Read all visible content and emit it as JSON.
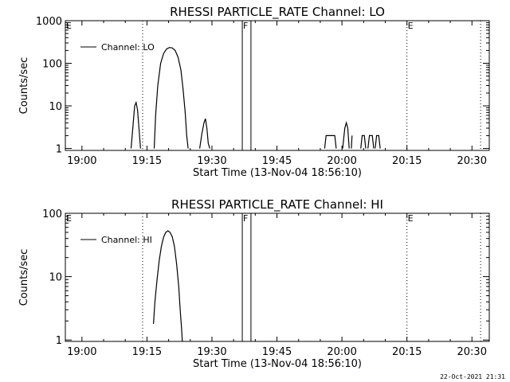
{
  "footer": {
    "timestamp": "22-Oct-2021 21:31"
  },
  "chart_data": [
    {
      "type": "line",
      "title": "RHESSI PARTICLE_RATE Channel: LO",
      "xlabel": "Start Time (13-Nov-04 18:56:10)",
      "ylabel": "Counts/sec",
      "y_scale": "log",
      "ylim": [
        0.9,
        1000
      ],
      "xlim": [
        "18:56:10",
        "20:34:00"
      ],
      "x_ticks": [
        "19:00",
        "19:15",
        "19:30",
        "19:45",
        "20:00",
        "20:15",
        "20:30"
      ],
      "y_ticks": [
        "1",
        "10",
        "100",
        "1000"
      ],
      "legend": {
        "placement": "top-left",
        "entries": [
          "Channel: LO"
        ]
      },
      "grid": false,
      "markers": [
        {
          "time": "19:14",
          "style": "dotted",
          "label": ""
        },
        {
          "time": "19:37",
          "style": "solid",
          "label": "F"
        },
        {
          "time": "19:39",
          "style": "solid",
          "label": ""
        },
        {
          "time": "20:15",
          "style": "dotted",
          "label": "E"
        },
        {
          "time": "20:32",
          "style": "dotted",
          "label": ""
        }
      ],
      "corner_labels": [
        "E"
      ],
      "series": [
        {
          "name": "Channel: LO",
          "segments": [
            [
              [
                "19:11:20",
                1
              ],
              [
                "19:11:50",
                4
              ],
              [
                "19:12:10",
                10
              ],
              [
                "19:12:30",
                12
              ],
              [
                "19:12:50",
                8
              ],
              [
                "19:13:10",
                3
              ],
              [
                "19:13:30",
                1
              ]
            ],
            [
              [
                "19:16:40",
                1
              ],
              [
                "19:17:00",
                6
              ],
              [
                "19:17:30",
                30
              ],
              [
                "19:18:10",
                100
              ],
              [
                "19:18:50",
                170
              ],
              [
                "19:19:30",
                215
              ],
              [
                "19:20:10",
                235
              ],
              [
                "19:20:50",
                230
              ],
              [
                "19:21:30",
                200
              ],
              [
                "19:22:10",
                140
              ],
              [
                "19:22:50",
                70
              ],
              [
                "19:23:20",
                25
              ],
              [
                "19:23:50",
                7
              ],
              [
                "19:24:10",
                2
              ],
              [
                "19:24:30",
                1
              ]
            ],
            [
              [
                "19:27:10",
                1
              ],
              [
                "19:27:40",
                2.2
              ],
              [
                "19:28:10",
                4
              ],
              [
                "19:28:30",
                5
              ],
              [
                "19:28:50",
                3
              ],
              [
                "19:29:10",
                1.3
              ],
              [
                "19:29:30",
                1
              ]
            ],
            [
              [
                "19:56:00",
                1
              ],
              [
                "19:56:20",
                2
              ],
              [
                "19:58:20",
                2
              ],
              [
                "19:58:40",
                1
              ]
            ],
            [
              [
                "20:00:10",
                1
              ],
              [
                "20:00:40",
                3
              ],
              [
                "20:01:00",
                4
              ],
              [
                "20:01:20",
                3
              ],
              [
                "20:01:40",
                1
              ]
            ],
            [
              [
                "20:02:10",
                1
              ],
              [
                "20:02:20",
                2
              ]
            ],
            [
              [
                "20:04:20",
                1
              ],
              [
                "20:04:40",
                2
              ],
              [
                "20:05:10",
                2
              ],
              [
                "20:05:30",
                1
              ]
            ],
            [
              [
                "20:06:00",
                1
              ],
              [
                "20:06:20",
                2
              ],
              [
                "20:07:00",
                2
              ],
              [
                "20:07:20",
                1
              ]
            ],
            [
              [
                "20:07:40",
                1
              ],
              [
                "20:08:00",
                2
              ],
              [
                "20:08:30",
                2
              ],
              [
                "20:08:50",
                1
              ]
            ]
          ]
        }
      ]
    },
    {
      "type": "line",
      "title": "RHESSI PARTICLE_RATE Channel: HI",
      "xlabel": "Start Time (13-Nov-04 18:56:10)",
      "ylabel": "Counts/sec",
      "y_scale": "log",
      "ylim": [
        0.95,
        100
      ],
      "xlim": [
        "18:56:10",
        "20:34:00"
      ],
      "x_ticks": [
        "19:00",
        "19:15",
        "19:30",
        "19:45",
        "20:00",
        "20:15",
        "20:30"
      ],
      "y_ticks": [
        "1",
        "10",
        "100"
      ],
      "legend": {
        "placement": "top-left",
        "entries": [
          "Channel: HI"
        ]
      },
      "grid": false,
      "markers": [
        {
          "time": "19:14",
          "style": "dotted",
          "label": ""
        },
        {
          "time": "19:37",
          "style": "solid",
          "label": "F"
        },
        {
          "time": "19:39",
          "style": "solid",
          "label": ""
        },
        {
          "time": "20:15",
          "style": "dotted",
          "label": "E"
        },
        {
          "time": "20:32",
          "style": "dotted",
          "label": ""
        }
      ],
      "corner_labels": [
        "E"
      ],
      "series": [
        {
          "name": "Channel: HI",
          "segments": [
            [
              [
                "19:16:30",
                1.8
              ],
              [
                "19:16:50",
                4
              ],
              [
                "19:17:20",
                9
              ],
              [
                "19:17:50",
                18
              ],
              [
                "19:18:20",
                30
              ],
              [
                "19:18:50",
                42
              ],
              [
                "19:19:20",
                50
              ],
              [
                "19:19:50",
                53
              ],
              [
                "19:20:20",
                50
              ],
              [
                "19:20:50",
                43
              ],
              [
                "19:21:20",
                30
              ],
              [
                "19:21:50",
                16
              ],
              [
                "19:22:20",
                7
              ],
              [
                "19:22:40",
                3
              ],
              [
                "19:23:00",
                1.5
              ],
              [
                "19:23:10",
                0.95
              ]
            ]
          ]
        }
      ]
    }
  ]
}
